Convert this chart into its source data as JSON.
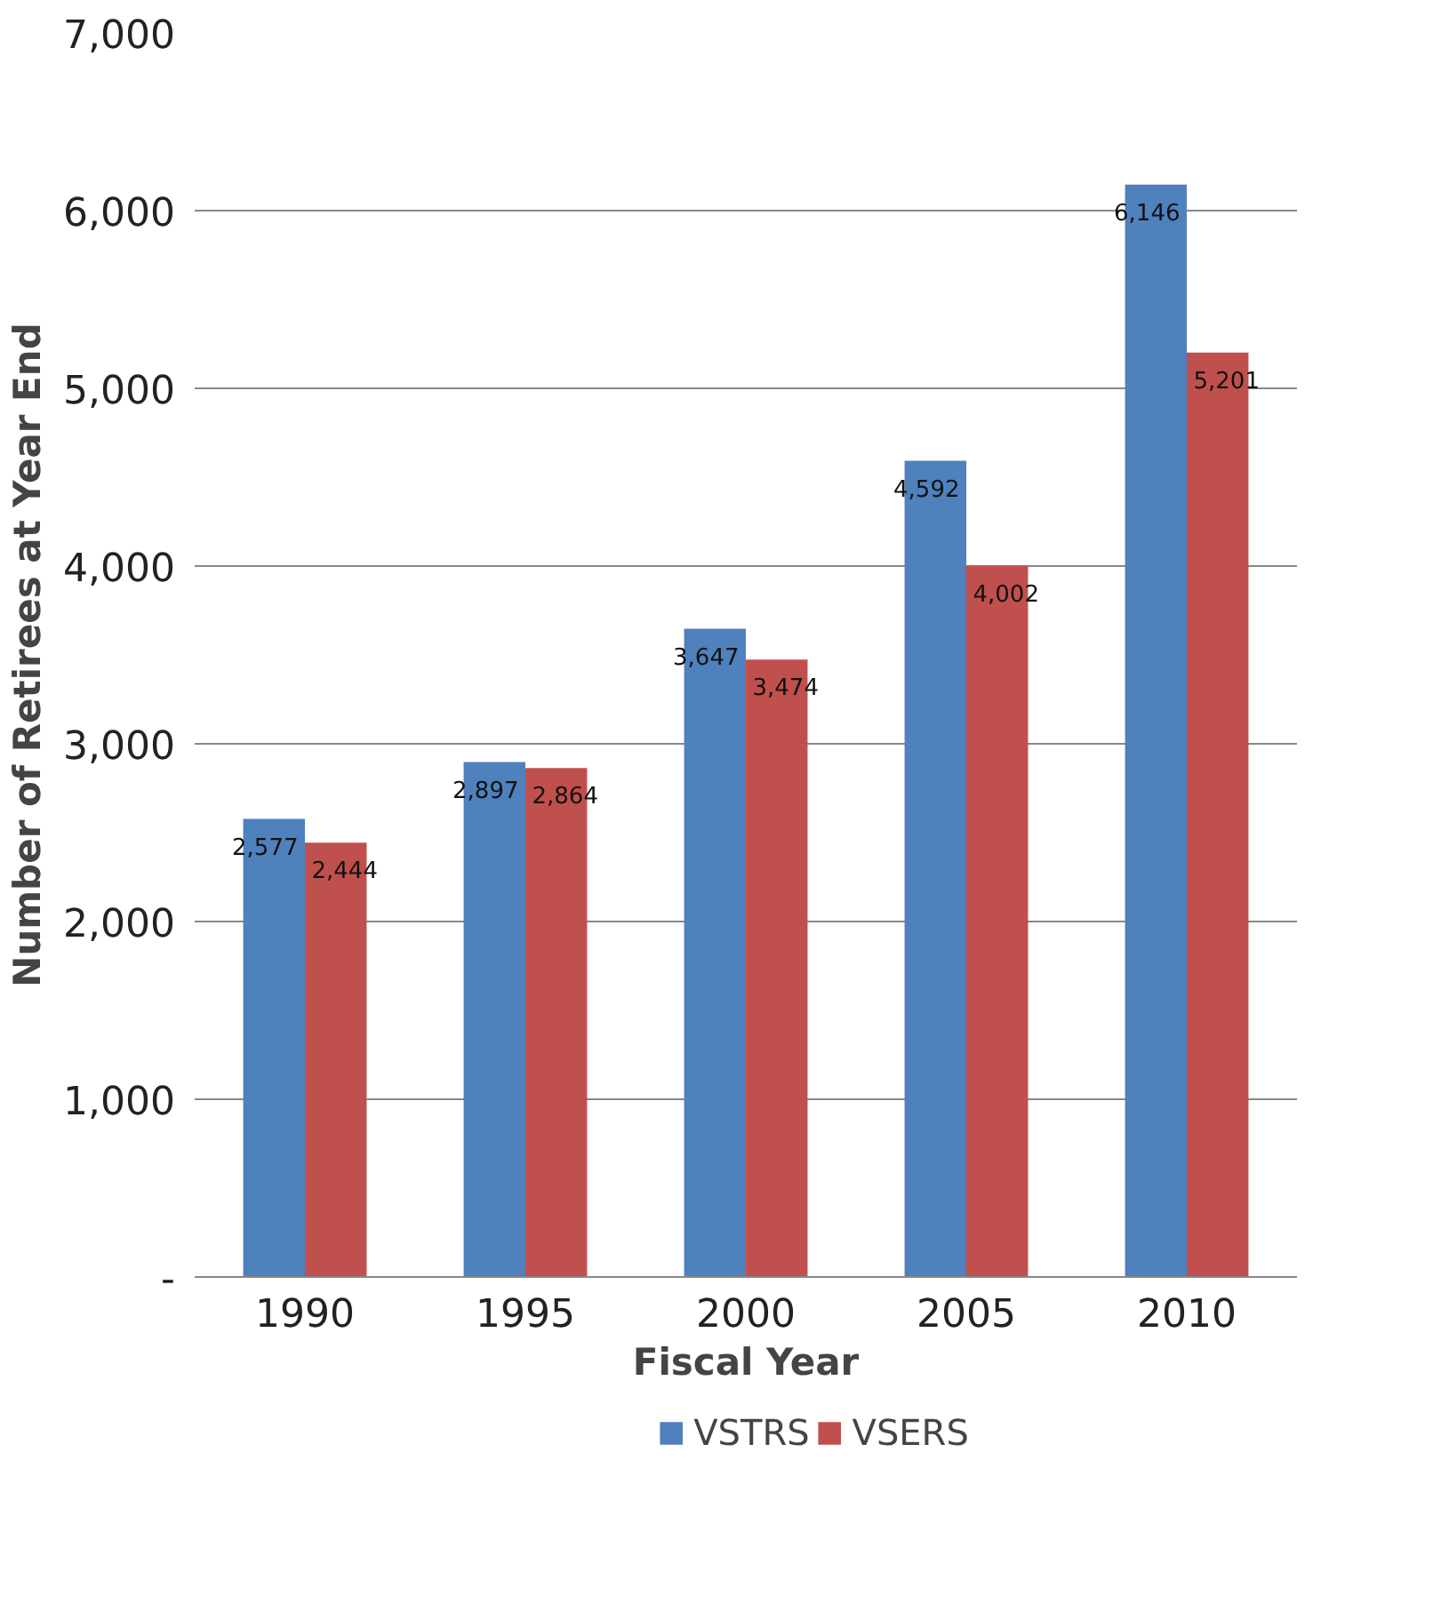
{
  "chart_data": {
    "type": "bar",
    "xlabel": "Fiscal Year",
    "ylabel": "Number of Retirees at Year End",
    "categories": [
      "1990",
      "1995",
      "2000",
      "2005",
      "2010"
    ],
    "series": [
      {
        "name": "VSTRS",
        "color": "#4f81bd",
        "values": [
          2577,
          2897,
          3647,
          4592,
          6146
        ],
        "value_labels": [
          "2,577",
          "2,897",
          "3,647",
          "4,592",
          "6,146"
        ]
      },
      {
        "name": "VSERS",
        "color": "#c0504d",
        "values": [
          2444,
          2864,
          3474,
          4002,
          5201
        ],
        "value_labels": [
          "2,444",
          "2,864",
          "3,474",
          "4,002",
          "5,201"
        ]
      }
    ],
    "ylim": [
      0,
      7000
    ],
    "yticks": [
      {
        "value": 0,
        "label": "-"
      },
      {
        "value": 1000,
        "label": "1,000"
      },
      {
        "value": 2000,
        "label": "2,000"
      },
      {
        "value": 3000,
        "label": "3,000"
      },
      {
        "value": 4000,
        "label": "4,000"
      },
      {
        "value": 5000,
        "label": "5,000"
      },
      {
        "value": 6000,
        "label": "6,000"
      },
      {
        "value": 7000,
        "label": "7,000"
      }
    ],
    "grid": "y",
    "legend": "bottom"
  }
}
